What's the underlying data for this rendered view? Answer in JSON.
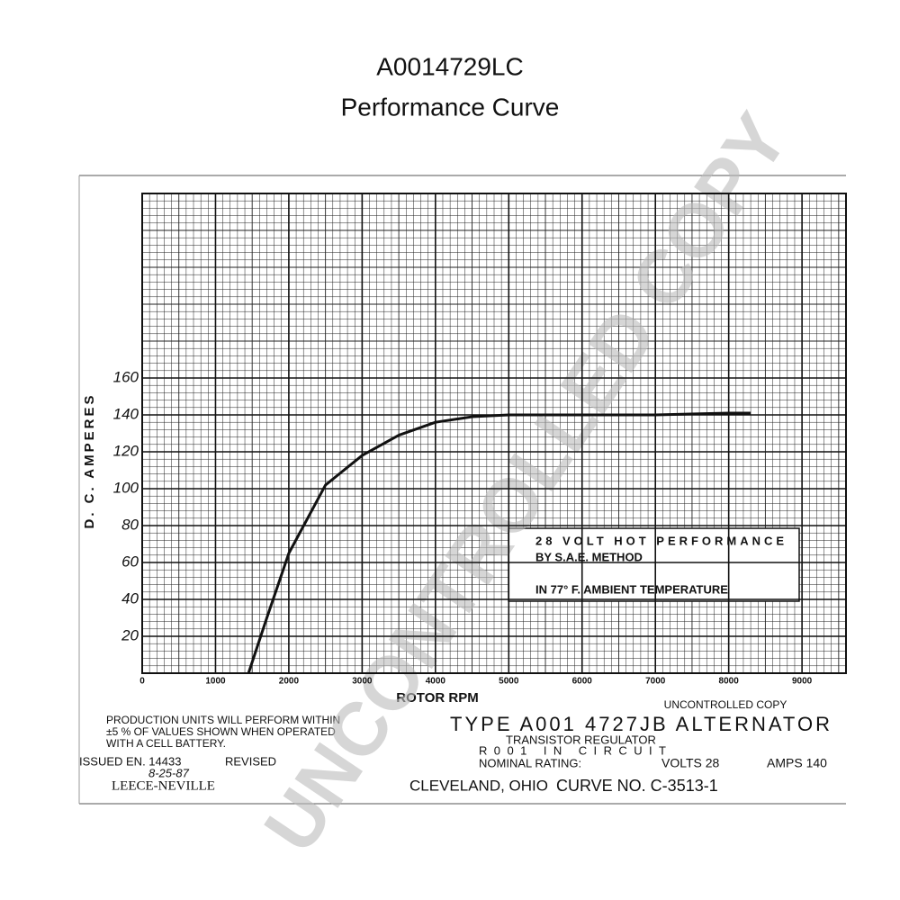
{
  "chart_data": {
    "type": "line",
    "title": "A0014729LC",
    "subtitle": "Performance Curve",
    "x_label": "ROTOR RPM",
    "y_label": "D. C. AMPERES",
    "x": [
      1450,
      1700,
      2000,
      2500,
      3000,
      3500,
      4000,
      4500,
      5000,
      6000,
      7000,
      8000,
      8300
    ],
    "series": [
      {
        "name": "28 VOLT HOT PERFORMANCE",
        "color": "#111111",
        "values": [
          0,
          30,
          65,
          102,
          118,
          129,
          136,
          139,
          140,
          140,
          140,
          141,
          141
        ]
      }
    ],
    "xlim": [
      0,
      9600
    ],
    "ylim": [
      0,
      260
    ],
    "xticks": [
      0,
      1000,
      2000,
      3000,
      4000,
      5000,
      6000,
      7000,
      8000,
      9000
    ],
    "yticks": [
      20,
      40,
      60,
      80,
      100,
      120,
      140,
      160
    ],
    "grid": true,
    "annotations": {
      "box": [
        "28 VOLT HOT PERFORMANCE",
        "BY S.A.E. METHOD",
        "IN 77° F. AMBIENT TEMPERATURE"
      ],
      "uncontrolled": "UNCONTROLLED COPY",
      "production": [
        "PRODUCTION UNITS WILL PERFORM WITHIN",
        "±5 % OF VALUES SHOWN WHEN OPERATED",
        "WITH A CELL BATTERY."
      ],
      "type": "TYPE A001 4727JB ALTERNATOR",
      "regulator": "TRANSISTOR REGULATOR",
      "regulator_code": "R001 IN CIRCUIT",
      "nominal": "NOMINAL RATING:",
      "volts": "VOLTS 28",
      "amps": "AMPS 140",
      "issued": "ISSUED EN. 14433",
      "issued_date": "8-25-87",
      "revised": "REVISED",
      "maker": "LEECE-NEVILLE",
      "city": "CLEVELAND, OHIO",
      "curve": "CURVE NO. C-3513-1",
      "watermark": "UNCONTROLLED COPY"
    }
  }
}
